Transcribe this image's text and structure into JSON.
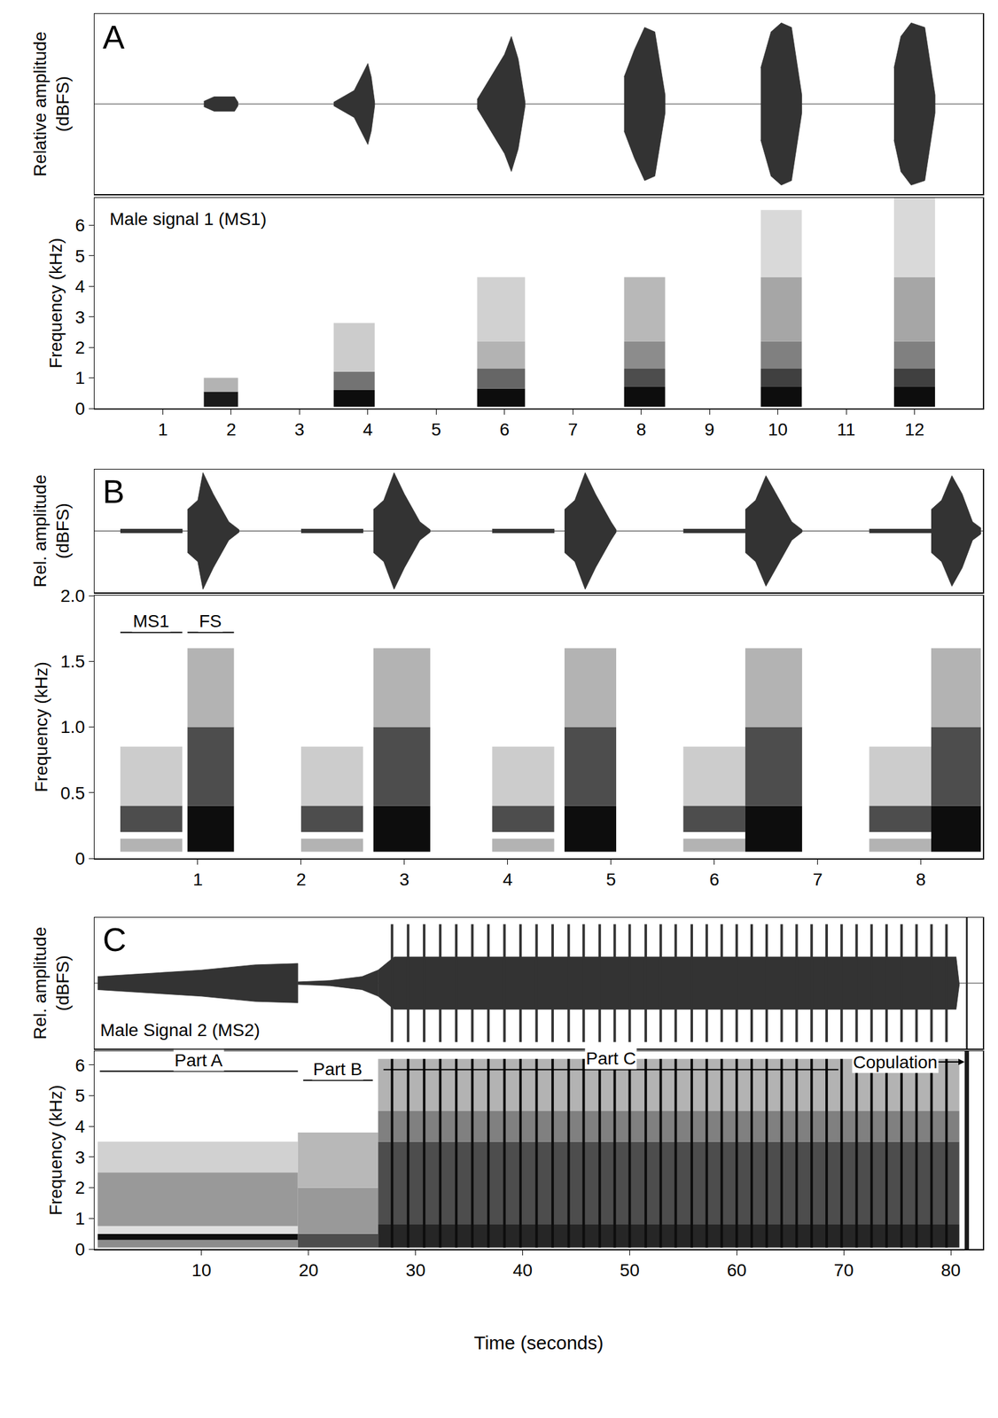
{
  "chart_data": [
    {
      "type": "waveform",
      "panel": "A",
      "ylabel": "Relative amplitude (dBFS)",
      "xlim": [
        0,
        13
      ],
      "ylim": [
        -1,
        1
      ],
      "tick_labels": false,
      "color": "#333333",
      "segments": [
        [
          [
            1.6,
            0.03
          ],
          [
            1.75,
            0.08
          ],
          [
            2.05,
            0.08
          ],
          [
            2.1,
            0.02
          ]
        ],
        [
          [
            3.5,
            0.02
          ],
          [
            3.8,
            0.15
          ],
          [
            4.0,
            0.45
          ],
          [
            4.05,
            0.3
          ],
          [
            4.1,
            0.02
          ]
        ],
        [
          [
            5.6,
            0.05
          ],
          [
            5.8,
            0.3
          ],
          [
            6.0,
            0.55
          ],
          [
            6.1,
            0.75
          ],
          [
            6.2,
            0.5
          ],
          [
            6.3,
            0.03
          ]
        ],
        [
          [
            7.75,
            0.3
          ],
          [
            7.9,
            0.6
          ],
          [
            8.05,
            0.85
          ],
          [
            8.2,
            0.8
          ],
          [
            8.35,
            0.1
          ]
        ],
        [
          [
            9.75,
            0.4
          ],
          [
            9.9,
            0.8
          ],
          [
            10.05,
            0.9
          ],
          [
            10.2,
            0.85
          ],
          [
            10.35,
            0.1
          ]
        ],
        [
          [
            11.7,
            0.4
          ],
          [
            11.8,
            0.75
          ],
          [
            11.95,
            0.9
          ],
          [
            12.15,
            0.85
          ],
          [
            12.3,
            0.1
          ]
        ]
      ]
    },
    {
      "type": "spectrogram",
      "ylabel": "Frequency (kHz)",
      "xlim": [
        0,
        13
      ],
      "xticks": [
        1,
        2,
        3,
        4,
        5,
        6,
        7,
        8,
        9,
        10,
        11,
        12
      ],
      "ylim": [
        0,
        6.9
      ],
      "yticks": [
        0,
        1,
        2,
        3,
        4,
        5,
        6
      ],
      "color": "#000000",
      "labels": [
        {
          "text": "Male signal 1 (MS1)",
          "x": 0.2,
          "y": 6.2
        }
      ],
      "bands": [
        {
          "start": 1.6,
          "end": 2.1,
          "low": 0.05,
          "high": 0.55,
          "level": 0.9
        },
        {
          "start": 1.6,
          "end": 2.1,
          "low": 0.55,
          "high": 1.0,
          "level": 0.3
        },
        {
          "start": 3.5,
          "end": 4.1,
          "low": 0.05,
          "high": 0.6,
          "level": 0.95
        },
        {
          "start": 3.5,
          "end": 4.1,
          "low": 0.6,
          "high": 1.2,
          "level": 0.55
        },
        {
          "start": 3.5,
          "end": 4.1,
          "low": 1.2,
          "high": 2.8,
          "level": 0.2
        },
        {
          "start": 5.6,
          "end": 6.3,
          "low": 0.05,
          "high": 0.65,
          "level": 0.95
        },
        {
          "start": 5.6,
          "end": 6.3,
          "low": 0.65,
          "high": 1.3,
          "level": 0.6
        },
        {
          "start": 5.6,
          "end": 6.3,
          "low": 1.3,
          "high": 2.2,
          "level": 0.3
        },
        {
          "start": 5.6,
          "end": 6.3,
          "low": 2.2,
          "high": 4.3,
          "level": 0.18
        },
        {
          "start": 7.75,
          "end": 8.35,
          "low": 0.05,
          "high": 0.7,
          "level": 0.95
        },
        {
          "start": 7.75,
          "end": 8.35,
          "low": 0.7,
          "high": 1.3,
          "level": 0.7
        },
        {
          "start": 7.75,
          "end": 8.35,
          "low": 1.3,
          "high": 2.2,
          "level": 0.45
        },
        {
          "start": 7.75,
          "end": 8.35,
          "low": 2.2,
          "high": 4.3,
          "level": 0.28
        },
        {
          "start": 9.75,
          "end": 10.35,
          "low": 0.05,
          "high": 0.7,
          "level": 0.95
        },
        {
          "start": 9.75,
          "end": 10.35,
          "low": 0.7,
          "high": 1.3,
          "level": 0.75
        },
        {
          "start": 9.75,
          "end": 10.35,
          "low": 1.3,
          "high": 2.2,
          "level": 0.5
        },
        {
          "start": 9.75,
          "end": 10.35,
          "low": 2.2,
          "high": 4.3,
          "level": 0.35
        },
        {
          "start": 9.75,
          "end": 10.35,
          "low": 4.3,
          "high": 6.5,
          "level": 0.15
        },
        {
          "start": 11.7,
          "end": 12.3,
          "low": 0.05,
          "high": 0.7,
          "level": 0.95
        },
        {
          "start": 11.7,
          "end": 12.3,
          "low": 0.7,
          "high": 1.3,
          "level": 0.75
        },
        {
          "start": 11.7,
          "end": 12.3,
          "low": 1.3,
          "high": 2.2,
          "level": 0.5
        },
        {
          "start": 11.7,
          "end": 12.3,
          "low": 2.2,
          "high": 4.3,
          "level": 0.35
        },
        {
          "start": 11.7,
          "end": 12.3,
          "low": 4.3,
          "high": 6.9,
          "level": 0.15
        }
      ]
    },
    {
      "type": "waveform",
      "panel": "B",
      "ylabel": "Rel. amplitude (dBFS)",
      "xlim": [
        0,
        8.6
      ],
      "ylim": [
        -1,
        1
      ],
      "tick_labels": false,
      "color": "#333333",
      "segments": [
        [
          [
            0.25,
            0.03
          ],
          [
            0.85,
            0.03
          ]
        ],
        [
          [
            0.9,
            0.35
          ],
          [
            1.0,
            0.5
          ],
          [
            1.05,
            0.95
          ],
          [
            1.15,
            0.6
          ],
          [
            1.3,
            0.15
          ],
          [
            1.4,
            0.02
          ]
        ],
        [
          [
            2.0,
            0.03
          ],
          [
            2.6,
            0.03
          ]
        ],
        [
          [
            2.7,
            0.35
          ],
          [
            2.8,
            0.5
          ],
          [
            2.9,
            0.95
          ],
          [
            3.0,
            0.6
          ],
          [
            3.15,
            0.15
          ],
          [
            3.25,
            0.02
          ]
        ],
        [
          [
            3.85,
            0.03
          ],
          [
            4.45,
            0.03
          ]
        ],
        [
          [
            4.55,
            0.35
          ],
          [
            4.65,
            0.5
          ],
          [
            4.75,
            0.95
          ],
          [
            4.85,
            0.6
          ],
          [
            5.0,
            0.15
          ],
          [
            5.05,
            0.02
          ]
        ],
        [
          [
            5.7,
            0.03
          ],
          [
            6.3,
            0.03
          ]
        ],
        [
          [
            6.3,
            0.35
          ],
          [
            6.4,
            0.5
          ],
          [
            6.5,
            0.9
          ],
          [
            6.6,
            0.6
          ],
          [
            6.75,
            0.15
          ],
          [
            6.85,
            0.02
          ]
        ],
        [
          [
            7.5,
            0.03
          ],
          [
            8.1,
            0.03
          ]
        ],
        [
          [
            8.1,
            0.35
          ],
          [
            8.2,
            0.5
          ],
          [
            8.3,
            0.9
          ],
          [
            8.4,
            0.6
          ],
          [
            8.5,
            0.15
          ],
          [
            8.58,
            0.05
          ]
        ]
      ]
    },
    {
      "type": "spectrogram",
      "ylabel": "Frequency (kHz)",
      "xlim": [
        0,
        8.6
      ],
      "xticks": [
        1,
        2,
        3,
        4,
        5,
        6,
        7,
        8
      ],
      "ylim": [
        0,
        2.0
      ],
      "yticks": [
        0,
        0.5,
        {
          "value": 1,
          "label": "1.0"
        },
        1.5,
        {
          "value": 2,
          "label": "2.0"
        }
      ],
      "color": "#000000",
      "brackets": [
        {
          "text": "MS1",
          "start": 0.25,
          "end": 0.85,
          "y": 1.72
        },
        {
          "text": "FS",
          "start": 0.9,
          "end": 1.35,
          "y": 1.72
        }
      ],
      "bands": [
        {
          "start": 0.25,
          "end": 0.85,
          "low": 0.05,
          "high": 0.15,
          "level": 0.3
        },
        {
          "start": 0.25,
          "end": 0.85,
          "low": 0.2,
          "high": 0.4,
          "level": 0.7
        },
        {
          "start": 0.25,
          "end": 0.85,
          "low": 0.4,
          "high": 0.85,
          "level": 0.2
        },
        {
          "start": 0.9,
          "end": 1.35,
          "low": 0.05,
          "high": 0.4,
          "level": 0.95
        },
        {
          "start": 0.9,
          "end": 1.35,
          "low": 0.4,
          "high": 1.0,
          "level": 0.7
        },
        {
          "start": 0.9,
          "end": 1.35,
          "low": 1.0,
          "high": 1.6,
          "level": 0.3
        },
        {
          "start": 2.0,
          "end": 2.6,
          "low": 0.05,
          "high": 0.15,
          "level": 0.3
        },
        {
          "start": 2.0,
          "end": 2.6,
          "low": 0.2,
          "high": 0.4,
          "level": 0.7
        },
        {
          "start": 2.0,
          "end": 2.6,
          "low": 0.4,
          "high": 0.85,
          "level": 0.2
        },
        {
          "start": 2.7,
          "end": 3.25,
          "low": 0.05,
          "high": 0.4,
          "level": 0.95
        },
        {
          "start": 2.7,
          "end": 3.25,
          "low": 0.4,
          "high": 1.0,
          "level": 0.7
        },
        {
          "start": 2.7,
          "end": 3.25,
          "low": 1.0,
          "high": 1.6,
          "level": 0.3
        },
        {
          "start": 3.85,
          "end": 4.45,
          "low": 0.05,
          "high": 0.15,
          "level": 0.3
        },
        {
          "start": 3.85,
          "end": 4.45,
          "low": 0.2,
          "high": 0.4,
          "level": 0.7
        },
        {
          "start": 3.85,
          "end": 4.45,
          "low": 0.4,
          "high": 0.85,
          "level": 0.2
        },
        {
          "start": 4.55,
          "end": 5.05,
          "low": 0.05,
          "high": 0.4,
          "level": 0.95
        },
        {
          "start": 4.55,
          "end": 5.05,
          "low": 0.4,
          "high": 1.0,
          "level": 0.7
        },
        {
          "start": 4.55,
          "end": 5.05,
          "low": 1.0,
          "high": 1.6,
          "level": 0.3
        },
        {
          "start": 5.7,
          "end": 6.3,
          "low": 0.05,
          "high": 0.15,
          "level": 0.3
        },
        {
          "start": 5.7,
          "end": 6.3,
          "low": 0.2,
          "high": 0.4,
          "level": 0.7
        },
        {
          "start": 5.7,
          "end": 6.3,
          "low": 0.4,
          "high": 0.85,
          "level": 0.2
        },
        {
          "start": 6.3,
          "end": 6.85,
          "low": 0.05,
          "high": 0.4,
          "level": 0.95
        },
        {
          "start": 6.3,
          "end": 6.85,
          "low": 0.4,
          "high": 1.0,
          "level": 0.7
        },
        {
          "start": 6.3,
          "end": 6.85,
          "low": 1.0,
          "high": 1.6,
          "level": 0.3
        },
        {
          "start": 7.5,
          "end": 8.1,
          "low": 0.05,
          "high": 0.15,
          "level": 0.3
        },
        {
          "start": 7.5,
          "end": 8.1,
          "low": 0.2,
          "high": 0.4,
          "level": 0.7
        },
        {
          "start": 7.5,
          "end": 8.1,
          "low": 0.4,
          "high": 0.85,
          "level": 0.2
        },
        {
          "start": 8.1,
          "end": 8.58,
          "low": 0.05,
          "high": 0.4,
          "level": 0.95
        },
        {
          "start": 8.1,
          "end": 8.58,
          "low": 0.4,
          "high": 1.0,
          "level": 0.7
        },
        {
          "start": 8.1,
          "end": 8.58,
          "low": 1.0,
          "high": 1.6,
          "level": 0.3
        }
      ]
    },
    {
      "type": "waveform",
      "panel": "C",
      "ylabel": "Rel. amplitude (dBFS)",
      "xlim": [
        0,
        83
      ],
      "ylim": [
        -1,
        1
      ],
      "tick_labels": false,
      "color": "#333333",
      "labels": [
        {
          "text": "Male Signal 2 (MS2)",
          "x": 0.4,
          "y": -0.72
        }
      ],
      "segments": [
        [
          [
            0.3,
            0.1
          ],
          [
            5,
            0.15
          ],
          [
            10,
            0.2
          ],
          [
            15,
            0.28
          ],
          [
            19,
            0.3
          ]
        ],
        [
          [
            19,
            0.02
          ],
          [
            22,
            0.04
          ],
          [
            25,
            0.1
          ],
          [
            26.5,
            0.2
          ]
        ],
        [
          [
            26.5,
            0.2
          ],
          [
            28,
            0.4
          ],
          [
            80.5,
            0.4
          ],
          [
            80.8,
            0.02
          ]
        ]
      ],
      "pulse_times": [
        27.8,
        29.3,
        30.8,
        32.3,
        33.8,
        35.3,
        36.8,
        38.3,
        39.8,
        41.3,
        42.8,
        44.3,
        45.7,
        47.2,
        48.6,
        50.0,
        51.5,
        52.9,
        54.3,
        55.8,
        57.2,
        58.6,
        60.0,
        61.4,
        62.8,
        64.2,
        65.6,
        67.0,
        68.4,
        69.8,
        71.2,
        72.6,
        74.0,
        75.4,
        76.8,
        78.2,
        79.6
      ],
      "pulse_amplitude": 0.9,
      "copulation": 81.5
    },
    {
      "type": "spectrogram",
      "ylabel": "Frequency (kHz)",
      "xlabel": "Time (seconds)",
      "xlim": [
        0,
        83
      ],
      "xticks": [
        10,
        20,
        30,
        40,
        50,
        60,
        70,
        80
      ],
      "ylim": [
        0,
        6.45
      ],
      "yticks": [
        0,
        1,
        2,
        3,
        4,
        5,
        6
      ],
      "color": "#000000",
      "brackets": [
        {
          "text": "Part A",
          "start": 0.5,
          "end": 19,
          "y": 5.8
        },
        {
          "text": "Part B",
          "start": 19.5,
          "end": 26,
          "y": 5.5
        },
        {
          "text": "Part C",
          "start": 27,
          "end": 69.5,
          "y": 5.85
        }
      ],
      "pointer": {
        "text": "Copulation",
        "x": 81.3,
        "y": 6.1
      },
      "bands": [
        {
          "start": 0.3,
          "end": 19,
          "low": 0.05,
          "high": 0.3,
          "level": 0.45
        },
        {
          "start": 0.3,
          "end": 19,
          "low": 0.3,
          "high": 0.5,
          "level": 0.95
        },
        {
          "start": 0.3,
          "end": 19,
          "low": 0.5,
          "high": 0.75,
          "level": 0.12
        },
        {
          "start": 0.3,
          "end": 19,
          "low": 0.75,
          "high": 2.5,
          "level": 0.4
        },
        {
          "start": 0.3,
          "end": 19,
          "low": 2.5,
          "high": 3.5,
          "level": 0.18
        },
        {
          "start": 19,
          "end": 26.5,
          "low": 0.05,
          "high": 0.5,
          "level": 0.7
        },
        {
          "start": 19,
          "end": 26.5,
          "low": 0.5,
          "high": 2.0,
          "level": 0.4
        },
        {
          "start": 19,
          "end": 26.5,
          "low": 2.0,
          "high": 3.8,
          "level": 0.28
        },
        {
          "start": 26.5,
          "end": 80.8,
          "low": 0.05,
          "high": 0.8,
          "level": 0.85
        },
        {
          "start": 26.5,
          "end": 80.8,
          "low": 0.8,
          "high": 3.5,
          "level": 0.7
        },
        {
          "start": 26.5,
          "end": 80.8,
          "low": 3.5,
          "high": 4.5,
          "level": 0.5
        },
        {
          "start": 26.5,
          "end": 80.8,
          "low": 4.5,
          "high": 6.2,
          "level": 0.3
        },
        {
          "start": 81.3,
          "end": 81.7,
          "low": 0,
          "high": 6.45,
          "level": 0.9
        }
      ],
      "pulse_times": [
        27.8,
        29.3,
        30.8,
        32.3,
        33.8,
        35.3,
        36.8,
        38.3,
        39.8,
        41.3,
        42.8,
        44.3,
        45.7,
        47.2,
        48.6,
        50.0,
        51.5,
        52.9,
        54.3,
        55.8,
        57.2,
        58.6,
        60.0,
        61.4,
        62.8,
        64.2,
        65.6,
        67.0,
        68.4,
        69.8,
        71.2,
        72.6,
        74.0,
        75.4,
        76.8,
        78.2,
        79.6
      ],
      "pulse_low": 0.05,
      "pulse_high": 6.2,
      "pulse_level": 0.95
    }
  ]
}
